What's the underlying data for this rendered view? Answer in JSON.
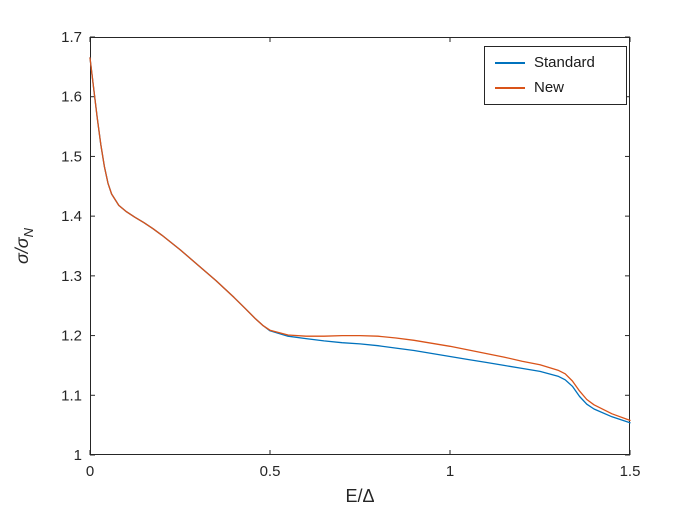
{
  "chart_data": {
    "type": "line",
    "title": "",
    "xlabel": "E/Δ",
    "ylabel": "σ/σ_N",
    "ylabel_main": "σ/σ",
    "ylabel_sub": "N",
    "xlim": [
      0,
      1.5
    ],
    "ylim": [
      1,
      1.7
    ],
    "xticks": [
      0,
      0.5,
      1,
      1.5
    ],
    "xtick_labels": [
      "0",
      "0.5",
      "1",
      "1.5"
    ],
    "yticks": [
      1,
      1.1,
      1.2,
      1.3,
      1.4,
      1.5,
      1.6,
      1.7
    ],
    "ytick_labels": [
      "1",
      "1.1",
      "1.2",
      "1.3",
      "1.4",
      "1.5",
      "1.6",
      "1.7"
    ],
    "grid": false,
    "legend_position": "top-right",
    "axis_color": "#262626",
    "background_color": "#ffffff",
    "series": [
      {
        "name": "Standard",
        "color": "#0072BD",
        "x": [
          0,
          0.005,
          0.01,
          0.02,
          0.03,
          0.04,
          0.05,
          0.06,
          0.08,
          0.1,
          0.125,
          0.15,
          0.175,
          0.2,
          0.25,
          0.3,
          0.35,
          0.4,
          0.43,
          0.46,
          0.48,
          0.5,
          0.55,
          0.6,
          0.65,
          0.7,
          0.75,
          0.8,
          0.85,
          0.9,
          0.95,
          1.0,
          1.05,
          1.1,
          1.15,
          1.2,
          1.25,
          1.3,
          1.32,
          1.34,
          1.36,
          1.38,
          1.4,
          1.45,
          1.5
        ],
        "y": [
          1.665,
          1.64,
          1.615,
          1.565,
          1.52,
          1.483,
          1.455,
          1.437,
          1.418,
          1.408,
          1.398,
          1.389,
          1.379,
          1.368,
          1.344,
          1.318,
          1.292,
          1.264,
          1.246,
          1.228,
          1.217,
          1.208,
          1.199,
          1.195,
          1.191,
          1.188,
          1.186,
          1.183,
          1.179,
          1.175,
          1.17,
          1.165,
          1.16,
          1.155,
          1.15,
          1.145,
          1.14,
          1.132,
          1.126,
          1.115,
          1.098,
          1.085,
          1.077,
          1.064,
          1.054
        ]
      },
      {
        "name": "New",
        "color": "#D95319",
        "x": [
          0,
          0.005,
          0.01,
          0.02,
          0.03,
          0.04,
          0.05,
          0.06,
          0.08,
          0.1,
          0.125,
          0.15,
          0.175,
          0.2,
          0.25,
          0.3,
          0.35,
          0.4,
          0.43,
          0.46,
          0.48,
          0.5,
          0.55,
          0.6,
          0.65,
          0.7,
          0.75,
          0.8,
          0.85,
          0.9,
          0.95,
          1.0,
          1.05,
          1.1,
          1.15,
          1.2,
          1.25,
          1.3,
          1.32,
          1.34,
          1.36,
          1.38,
          1.4,
          1.45,
          1.5
        ],
        "y": [
          1.665,
          1.64,
          1.615,
          1.565,
          1.52,
          1.483,
          1.455,
          1.437,
          1.418,
          1.408,
          1.398,
          1.389,
          1.379,
          1.368,
          1.344,
          1.318,
          1.292,
          1.264,
          1.246,
          1.228,
          1.217,
          1.209,
          1.201,
          1.199,
          1.199,
          1.2,
          1.2,
          1.199,
          1.196,
          1.192,
          1.187,
          1.182,
          1.176,
          1.17,
          1.164,
          1.157,
          1.151,
          1.142,
          1.136,
          1.124,
          1.107,
          1.093,
          1.084,
          1.069,
          1.058
        ]
      }
    ]
  }
}
